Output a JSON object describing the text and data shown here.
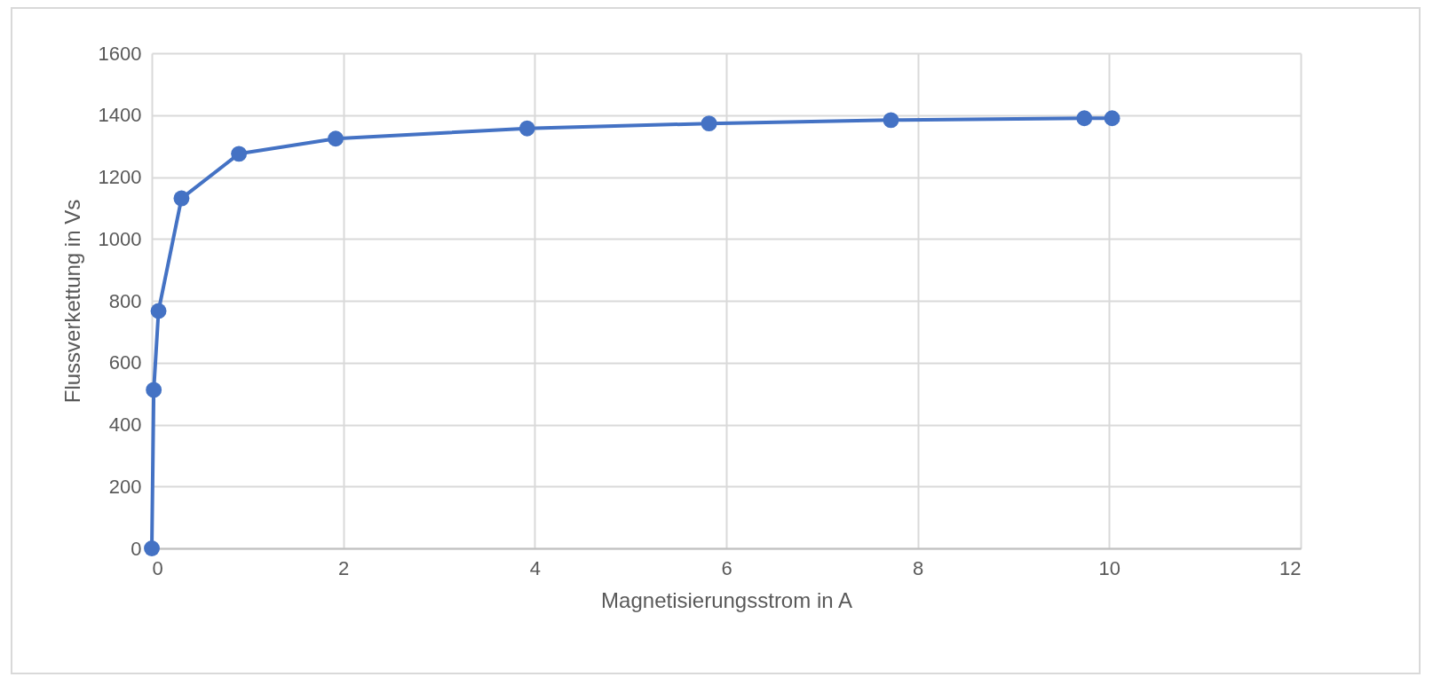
{
  "chart_data": {
    "type": "line",
    "xlabel": "Magnetisierungsstrom in A",
    "ylabel": "Flussverkettung in Vs",
    "x": [
      0,
      0.02,
      0.07,
      0.31,
      0.91,
      1.92,
      3.92,
      5.82,
      7.72,
      9.74,
      10.03
    ],
    "series": [
      {
        "color": "#4472c4",
        "values": [
          0,
          512,
          767,
          1131,
          1275,
          1324,
          1357,
          1373,
          1384,
          1390,
          1390
        ]
      }
    ],
    "xlim": [
      0,
      12
    ],
    "xticks": [
      0,
      2,
      4,
      6,
      8,
      10,
      12
    ],
    "ylim": [
      0,
      1600
    ],
    "yticks": [
      0,
      200,
      400,
      600,
      800,
      1000,
      1200,
      1400,
      1600
    ],
    "grid": true,
    "marker": "circle",
    "line_style": "solid"
  }
}
